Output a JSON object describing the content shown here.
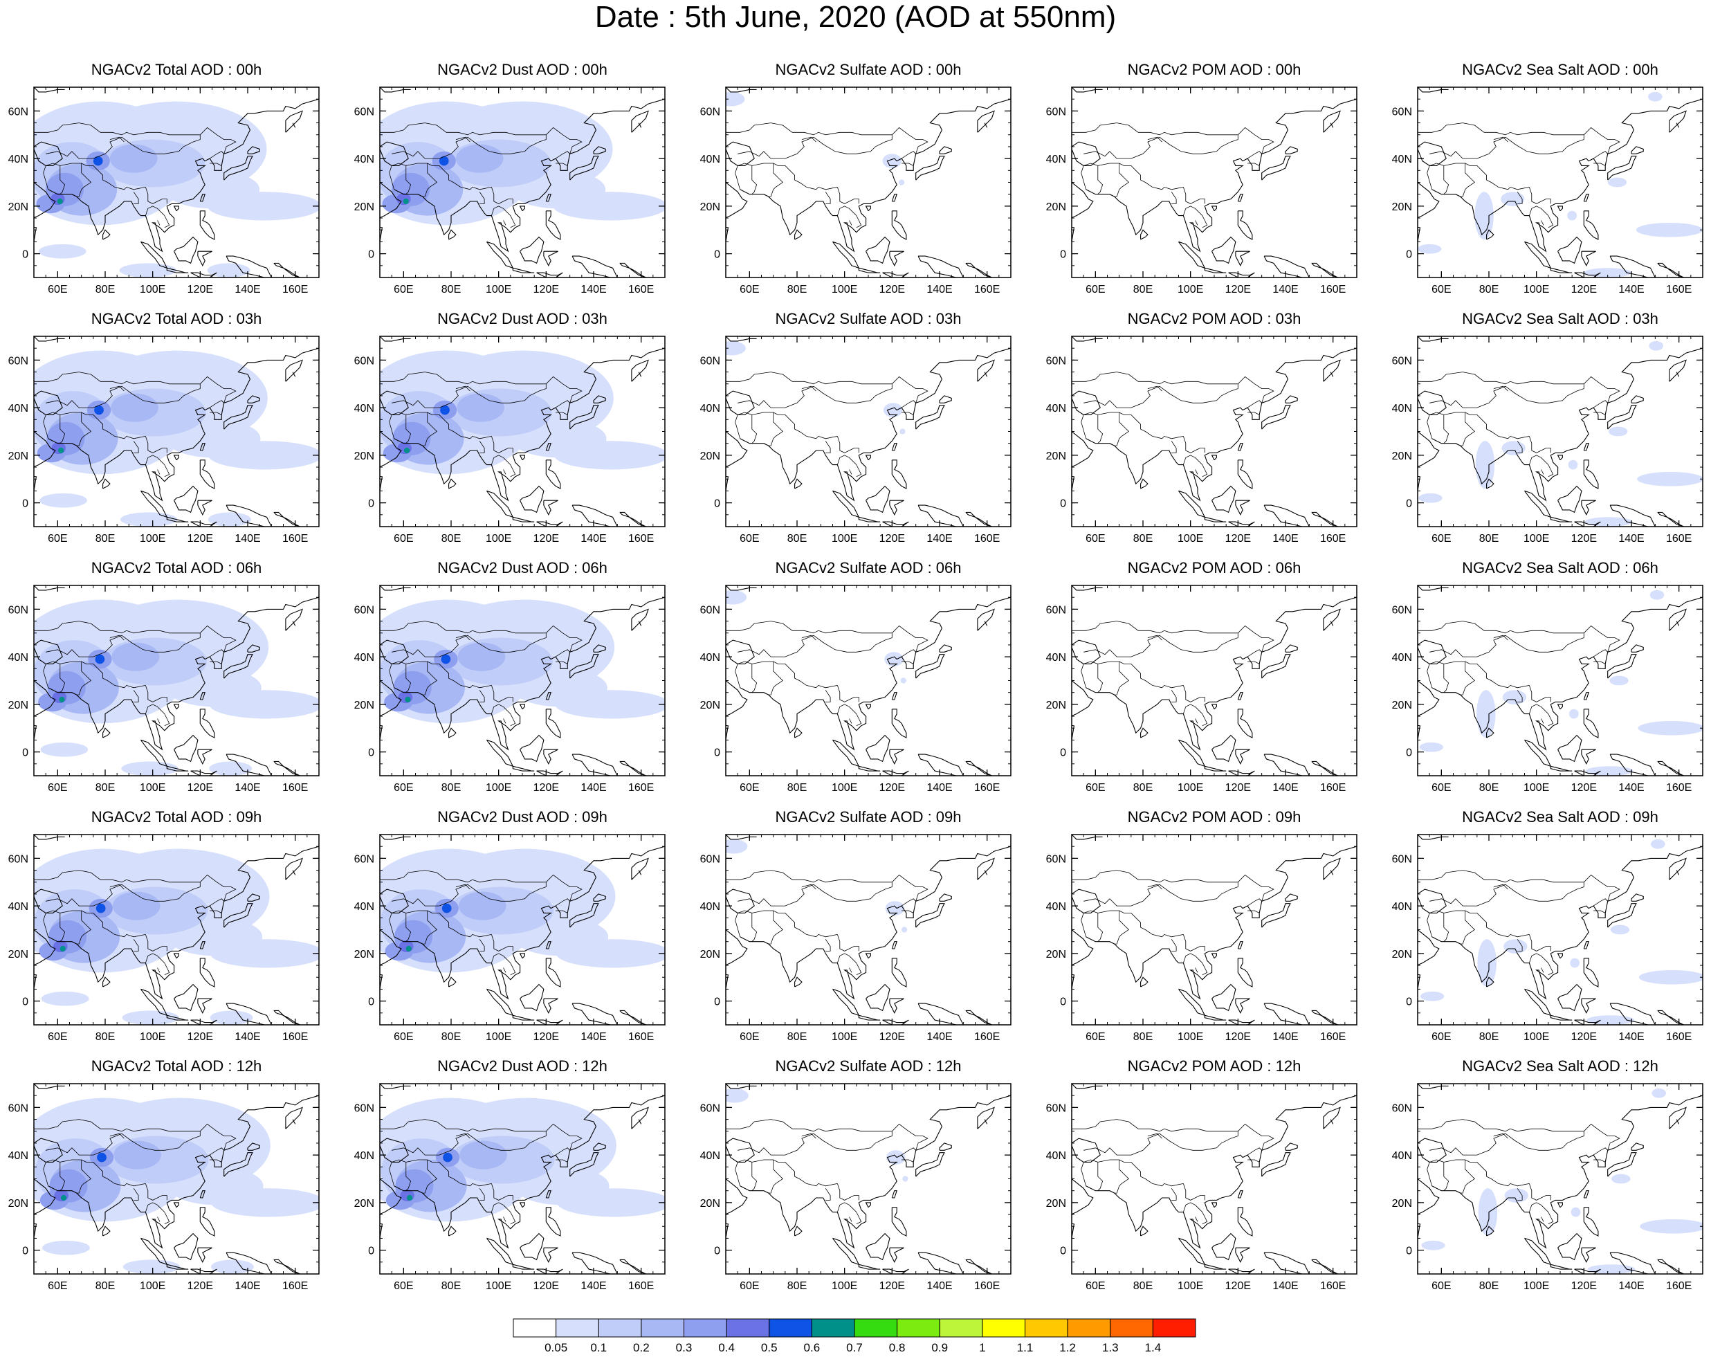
{
  "title": "Date : 5th June, 2020 (AOD at 550nm)",
  "colors": {
    "ocean": "#ffffff",
    "coast": "#000000",
    "levels": [
      "#ffffff",
      "#d6dffb",
      "#c0cdf8",
      "#a8b8f4",
      "#8e9ff0",
      "#6a72e6",
      "#0f52e6",
      "#00908a",
      "#35dd10",
      "#7cec10",
      "#bdf53a",
      "#ffff00",
      "#ffc800",
      "#ff9a00",
      "#ff6800",
      "#ff1e00"
    ]
  },
  "chart_data": {
    "type": "heatmap",
    "variable": "AOD at 550nm",
    "x_ticks": [
      "60E",
      "80E",
      "100E",
      "120E",
      "140E",
      "160E"
    ],
    "y_ticks": [
      "60N",
      "40N",
      "20N",
      "0"
    ],
    "lon_range": [
      50,
      170
    ],
    "lat_range": [
      -10,
      70
    ],
    "colorbar": {
      "labels": [
        "0.05",
        "0.1",
        "0.2",
        "0.3",
        "0.4",
        "0.5",
        "0.6",
        "0.7",
        "0.8",
        "0.9",
        "1",
        "1.1",
        "1.2",
        "1.3",
        "1.4"
      ]
    },
    "columns": [
      "Total",
      "Dust",
      "Sulfate",
      "POM",
      "Sea Salt"
    ],
    "rows": [
      "00h",
      "03h",
      "06h",
      "09h",
      "12h"
    ],
    "panels": [
      [
        "NGACv2 Total AOD : 00h",
        "NGACv2 Dust AOD : 00h",
        "NGACv2 Sulfate AOD : 00h",
        "NGACv2 POM AOD : 00h",
        "NGACv2 Sea Salt AOD : 00h"
      ],
      [
        "NGACv2 Total AOD : 03h",
        "NGACv2 Dust AOD : 03h",
        "NGACv2 Sulfate AOD : 03h",
        "NGACv2 POM AOD : 03h",
        "NGACv2 Sea Salt AOD : 03h"
      ],
      [
        "NGACv2 Total AOD : 06h",
        "NGACv2 Dust AOD : 06h",
        "NGACv2 Sulfate AOD : 06h",
        "NGACv2 POM AOD : 06h",
        "NGACv2 Sea Salt AOD : 06h"
      ],
      [
        "NGACv2 Total AOD : 09h",
        "NGACv2 Dust AOD : 09h",
        "NGACv2 Sulfate AOD : 09h",
        "NGACv2 POM AOD : 09h",
        "NGACv2 Sea Salt  AOD : 09h"
      ],
      [
        "NGACv2 Total AOD  : 12h",
        "NGACv2 Dust AOD : 12h",
        "NGACv2 Sulfate AOD : 12h",
        "NGACv2 POM  AOD : 12h",
        "NGACv2 Sea Salt  AOD : 12h"
      ]
    ]
  }
}
